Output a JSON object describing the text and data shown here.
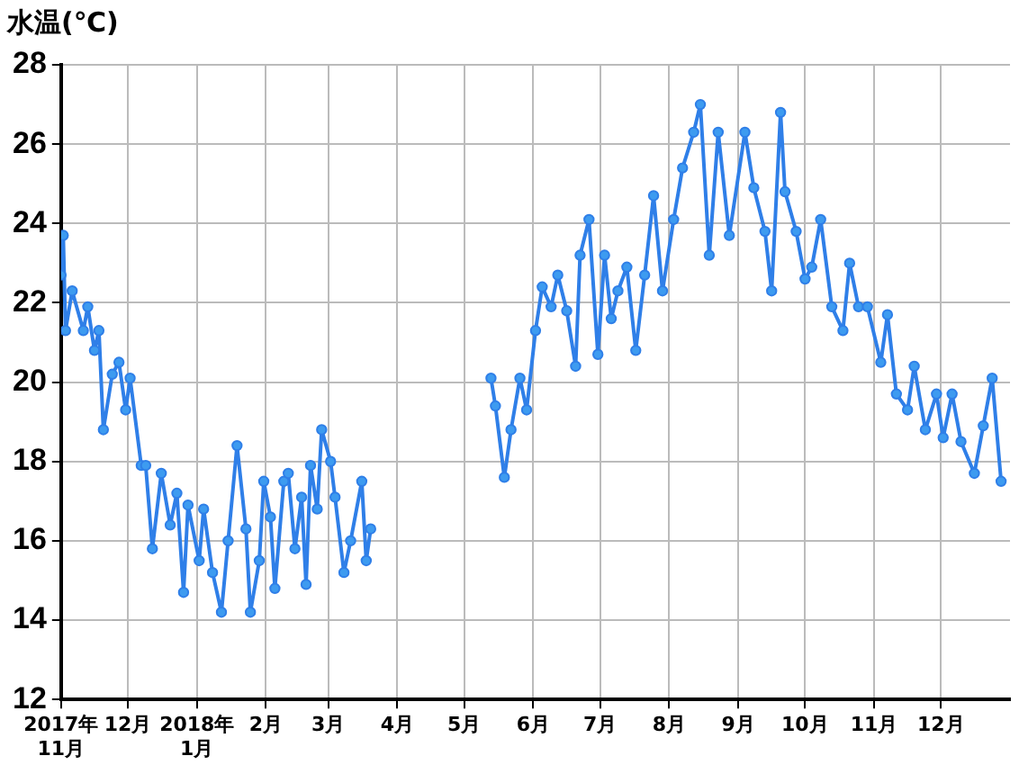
{
  "chart_data": {
    "type": "line",
    "ylabel": "水温(℃)",
    "marker": "circle",
    "grid": true,
    "xlim": [
      "2017-11-01",
      "2019-01-01"
    ],
    "xticks": [
      {
        "value": "2017-11-01",
        "label": "2017年\n11月"
      },
      {
        "value": "2017-12-01",
        "label": "12月"
      },
      {
        "value": "2018-01-01",
        "label": "2018年\n1月"
      },
      {
        "value": "2018-02-01",
        "label": "2月"
      },
      {
        "value": "2018-03-01",
        "label": "3月"
      },
      {
        "value": "2018-04-01",
        "label": "4月"
      },
      {
        "value": "2018-05-01",
        "label": "5月"
      },
      {
        "value": "2018-06-01",
        "label": "6月"
      },
      {
        "value": "2018-07-01",
        "label": "7月"
      },
      {
        "value": "2018-08-01",
        "label": "8月"
      },
      {
        "value": "2018-09-01",
        "label": "9月"
      },
      {
        "value": "2018-10-01",
        "label": "10月"
      },
      {
        "value": "2018-11-01",
        "label": "11月"
      },
      {
        "value": "2018-12-01",
        "label": "12月"
      }
    ],
    "ylim": [
      12,
      28
    ],
    "yticks": [
      12,
      14,
      16,
      18,
      20,
      22,
      24,
      26,
      28
    ],
    "series": [
      {
        "color": "#2f7fe8",
        "x": [
          "2017-11-01",
          "2017-11-02",
          "2017-11-03",
          "2017-11-06",
          "2017-11-11",
          "2017-11-13",
          "2017-11-16",
          "2017-11-18",
          "2017-11-20",
          "2017-11-24",
          "2017-11-27",
          "2017-11-30",
          "2017-12-02",
          "2017-12-07",
          "2017-12-09",
          "2017-12-12",
          "2017-12-16",
          "2017-12-20",
          "2017-12-23",
          "2017-12-26",
          "2017-12-28",
          "2018-01-02",
          "2018-01-04",
          "2018-01-08",
          "2018-01-12",
          "2018-01-15",
          "2018-01-19",
          "2018-01-23",
          "2018-01-25",
          "2018-01-29",
          "2018-01-31",
          "2018-02-03",
          "2018-02-05",
          "2018-02-09",
          "2018-02-11",
          "2018-02-14",
          "2018-02-17",
          "2018-02-19",
          "2018-02-21",
          "2018-02-24",
          "2018-02-26",
          "2018-03-02",
          "2018-03-04",
          "2018-03-08",
          "2018-03-11",
          "2018-03-16",
          "2018-03-18",
          "2018-03-20",
          "2018-04-20",
          "2018-05-13",
          "2018-05-15",
          "2018-05-19",
          "2018-05-22",
          "2018-05-26",
          "2018-05-29",
          "2018-06-02",
          "2018-06-05",
          "2018-06-09",
          "2018-06-12",
          "2018-06-16",
          "2018-06-20",
          "2018-06-22",
          "2018-06-26",
          "2018-06-30",
          "2018-07-03",
          "2018-07-06",
          "2018-07-09",
          "2018-07-13",
          "2018-07-17",
          "2018-07-21",
          "2018-07-25",
          "2018-07-29",
          "2018-08-03",
          "2018-08-07",
          "2018-08-12",
          "2018-08-15",
          "2018-08-19",
          "2018-08-23",
          "2018-08-28",
          "2018-09-04",
          "2018-09-08",
          "2018-09-13",
          "2018-09-16",
          "2018-09-20",
          "2018-09-22",
          "2018-09-27",
          "2018-10-01",
          "2018-10-04",
          "2018-10-08",
          "2018-10-13",
          "2018-10-18",
          "2018-10-21",
          "2018-10-25",
          "2018-10-29",
          "2018-11-04",
          "2018-11-07",
          "2018-11-11",
          "2018-11-16",
          "2018-11-19",
          "2018-11-24",
          "2018-11-29",
          "2018-12-02",
          "2018-12-06",
          "2018-12-10",
          "2018-12-16",
          "2018-12-20",
          "2018-12-24",
          "2018-12-28"
        ],
        "values": [
          22.7,
          23.7,
          21.3,
          22.3,
          21.3,
          21.9,
          20.8,
          21.3,
          18.8,
          20.2,
          20.5,
          19.3,
          20.1,
          17.9,
          17.9,
          15.8,
          17.7,
          16.4,
          17.2,
          14.7,
          16.9,
          15.5,
          16.8,
          15.2,
          14.2,
          16.0,
          18.4,
          16.3,
          14.2,
          15.5,
          17.5,
          16.6,
          14.8,
          17.5,
          17.7,
          15.8,
          17.1,
          14.9,
          17.9,
          16.8,
          18.8,
          18.0,
          17.1,
          15.2,
          16.0,
          17.5,
          15.5,
          16.3,
          null,
          20.1,
          19.4,
          17.6,
          18.8,
          20.1,
          19.3,
          21.3,
          22.4,
          21.9,
          22.7,
          21.8,
          20.4,
          23.2,
          24.1,
          20.7,
          23.2,
          21.6,
          22.3,
          22.9,
          20.8,
          22.7,
          24.7,
          22.3,
          24.1,
          25.4,
          26.3,
          27.0,
          23.2,
          26.3,
          23.7,
          26.3,
          24.9,
          23.8,
          22.3,
          26.8,
          24.8,
          23.8,
          22.6,
          22.9,
          24.1,
          21.9,
          21.3,
          23.0,
          21.9,
          21.9,
          20.5,
          21.7,
          19.7,
          19.3,
          20.4,
          18.8,
          19.7,
          18.6,
          19.7,
          18.5,
          17.7,
          18.9,
          20.1,
          17.5
        ]
      }
    ]
  }
}
